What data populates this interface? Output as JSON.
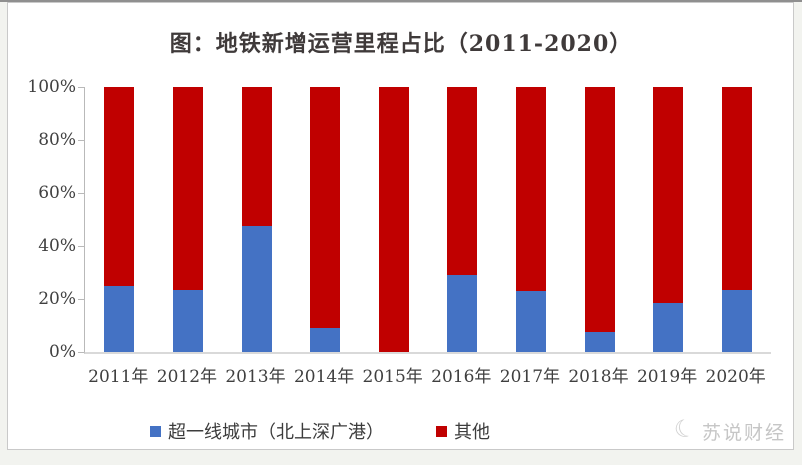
{
  "page": {
    "watermark_text": "苏说财经"
  },
  "chart_data": {
    "type": "bar",
    "stacked": true,
    "title": "图：地铁新增运营里程占比（2011-2020）",
    "categories": [
      "2011年",
      "2012年",
      "2013年",
      "2014年",
      "2015年",
      "2016年",
      "2017年",
      "2018年",
      "2019年",
      "2020年"
    ],
    "series": [
      {
        "name": "超一线城市（北上深广港）",
        "color": "#4472C4",
        "values": [
          25,
          23.5,
          47.5,
          9,
          0,
          29,
          23,
          7.5,
          18.5,
          23.5
        ]
      },
      {
        "name": "其他",
        "color": "#C00000",
        "values": [
          75,
          76.5,
          52.5,
          91,
          100,
          71,
          77,
          92.5,
          81.5,
          76.5
        ]
      }
    ],
    "xlabel": "",
    "ylabel": "",
    "ylim": [
      0,
      100
    ],
    "yticks": [
      "0%",
      "20%",
      "40%",
      "60%",
      "80%",
      "100%"
    ],
    "grid": false,
    "legend_position": "bottom"
  },
  "colors": {
    "series_blue": "#4472C4",
    "series_red": "#C00000",
    "axis_gray": "#b9b9b9",
    "title_text": "#3f3a3a",
    "watermark_gray": "#c9c9c9"
  }
}
